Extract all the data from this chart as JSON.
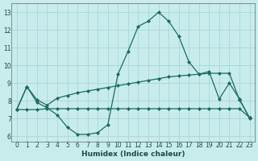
{
  "xlabel": "Humidex (Indice chaleur)",
  "bg_color": "#c8ecec",
  "grid_color": "#aed8d8",
  "line_color": "#1a6b60",
  "xlim": [
    -0.5,
    23.5
  ],
  "ylim": [
    5.7,
    13.5
  ],
  "yticks": [
    6,
    7,
    8,
    9,
    10,
    11,
    12,
    13
  ],
  "xticks": [
    0,
    1,
    2,
    3,
    4,
    5,
    6,
    7,
    8,
    9,
    10,
    11,
    12,
    13,
    14,
    15,
    16,
    17,
    18,
    19,
    20,
    21,
    22,
    23
  ],
  "line1_x": [
    0,
    1,
    2,
    3,
    4,
    5,
    6,
    7,
    8,
    9,
    10,
    11,
    12,
    13,
    14,
    15,
    16,
    17,
    18,
    19,
    20,
    21,
    22,
    23
  ],
  "line1_y": [
    7.5,
    8.8,
    7.9,
    7.6,
    7.2,
    6.5,
    6.1,
    6.1,
    6.2,
    6.65,
    9.5,
    10.8,
    12.2,
    12.5,
    13.0,
    12.5,
    11.65,
    10.2,
    9.5,
    9.65,
    8.1,
    9.0,
    8.1,
    7.0
  ],
  "line2_x": [
    0,
    1,
    2,
    3,
    4,
    5,
    6,
    7,
    8,
    9,
    10,
    11,
    12,
    13,
    14,
    15,
    16,
    17,
    18,
    19,
    20,
    21,
    22,
    23
  ],
  "line2_y": [
    7.5,
    8.8,
    8.05,
    7.75,
    8.15,
    8.3,
    8.45,
    8.55,
    8.65,
    8.75,
    8.85,
    8.95,
    9.05,
    9.15,
    9.25,
    9.35,
    9.4,
    9.45,
    9.5,
    9.55,
    9.55,
    9.55,
    8.05,
    7.05
  ],
  "line3_x": [
    0,
    1,
    2,
    3,
    4,
    5,
    6,
    7,
    8,
    9,
    10,
    11,
    12,
    13,
    14,
    15,
    16,
    17,
    18,
    19,
    20,
    21,
    22,
    23
  ],
  "line3_y": [
    7.5,
    7.5,
    7.5,
    7.55,
    7.55,
    7.55,
    7.55,
    7.55,
    7.55,
    7.55,
    7.55,
    7.55,
    7.55,
    7.55,
    7.55,
    7.55,
    7.55,
    7.55,
    7.55,
    7.55,
    7.55,
    7.55,
    7.55,
    7.05
  ],
  "tick_fontsize": 5.5,
  "label_fontsize": 6.5
}
